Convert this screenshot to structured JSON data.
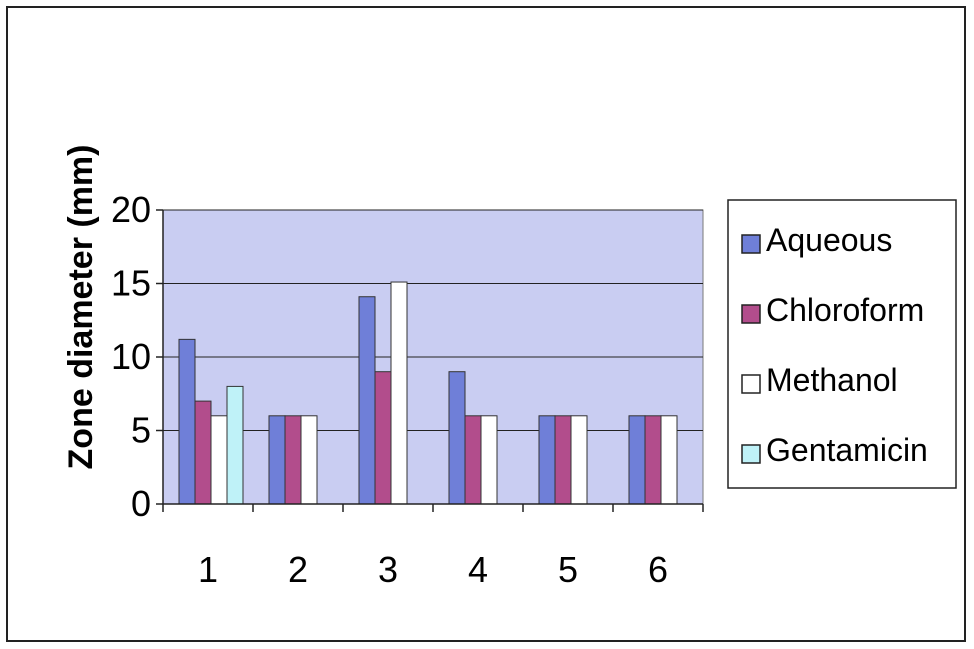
{
  "chart_data": {
    "type": "bar",
    "title": "",
    "xlabel": "",
    "ylabel": "Zone diameter (mm)",
    "categories": [
      "1",
      "2",
      "3",
      "4",
      "5",
      "6"
    ],
    "ylim": [
      0,
      20
    ],
    "yticks": [
      "0",
      "5",
      "10",
      "15",
      "20"
    ],
    "grid": true,
    "legend_position": "right",
    "series": [
      {
        "name": "Aqueous",
        "color": "#6f7fd8",
        "values": [
          11.2,
          6,
          14.1,
          9,
          6,
          6
        ]
      },
      {
        "name": "Chloroform",
        "color": "#b24d8c",
        "values": [
          7,
          6,
          9,
          6,
          6,
          6
        ]
      },
      {
        "name": "Methanol",
        "color": "#ffffff",
        "values": [
          6,
          6,
          15.1,
          6,
          6,
          6
        ]
      },
      {
        "name": "Gentamicin",
        "color": "#bff2f8",
        "values": [
          8,
          null,
          null,
          null,
          null,
          null
        ]
      }
    ],
    "plot_background": "#c9cdf2"
  }
}
